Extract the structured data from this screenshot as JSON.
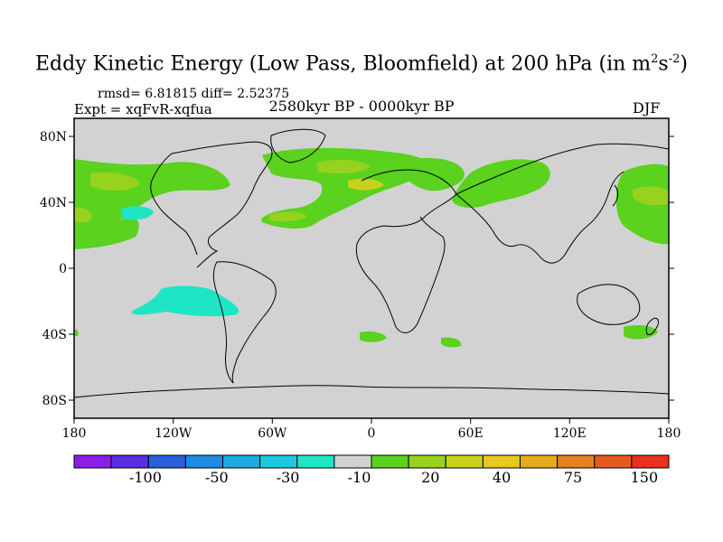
{
  "title": {
    "main": "Eddy Kinetic Energy (Low Pass, Bloomfield) at 200 hPa (in m",
    "sup1": "2",
    "mid": "s",
    "sup2": "-2",
    "end": ")"
  },
  "stats": "rmsd= 6.81815 diff= 2.52375",
  "expt": "Expt = xqFvR-xqfua",
  "period": "2580kyr BP - 0000kyr BP",
  "season": "DJF",
  "lat_labels": [
    "80N",
    "40N",
    "0",
    "40S",
    "80S"
  ],
  "lon_labels": [
    "180",
    "120W",
    "60W",
    "0",
    "60E",
    "120E",
    "180"
  ],
  "colorbar": {
    "colors": [
      "#8a1ee6",
      "#5a2de0",
      "#2a5fdc",
      "#1e8be6",
      "#1eaadc",
      "#1ec8dc",
      "#1ee6c4",
      "#d2d2d2",
      "#5ad21e",
      "#96d21e",
      "#c8d21e",
      "#e6c81e",
      "#e6aa1e",
      "#e6821e",
      "#e65a1e",
      "#e6321e"
    ],
    "labels": [
      "-100",
      "-50",
      "-30",
      "-10",
      "20",
      "40",
      "75",
      "150"
    ]
  },
  "palette": {
    "background": "#d2d2d2",
    "green": "#5ad21e",
    "light_green": "#96d21e",
    "yellow_green": "#c8d21e",
    "cyan": "#1ee6c4"
  }
}
